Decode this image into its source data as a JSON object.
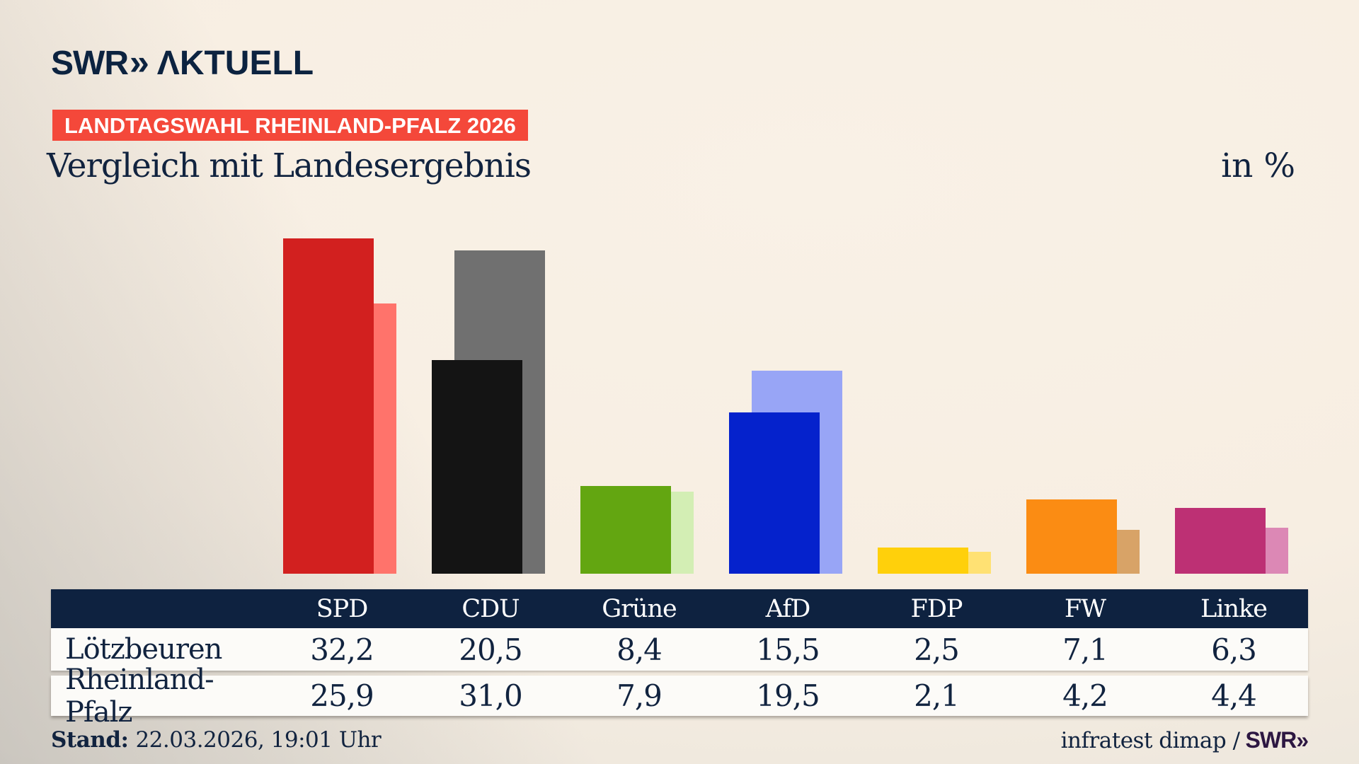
{
  "header": {
    "logo_swr": "SWR",
    "logo_chevron": "»",
    "logo_aktuell": "ΛKTUELL",
    "badge": "LANDTAGSWAHL RHEINLAND-PFALZ 2026",
    "title": "Vergleich mit Landesergebnis",
    "unit_label": "in %"
  },
  "chart_data": {
    "type": "bar",
    "categories": [
      "SPD",
      "CDU",
      "Grüne",
      "AfD",
      "FDP",
      "FW",
      "Linke"
    ],
    "series": [
      {
        "name": "Lötzbeuren",
        "role": "main",
        "values": [
          32.2,
          20.5,
          8.4,
          15.5,
          2.5,
          7.1,
          6.3
        ],
        "labels": [
          "32,2",
          "20,5",
          "8,4",
          "15,5",
          "2,5",
          "7,1",
          "6,3"
        ],
        "colors": [
          "#d2201f",
          "#141414",
          "#63a611",
          "#0522cc",
          "#ffd00b",
          "#fb8c13",
          "#bd3074"
        ]
      },
      {
        "name": "Rheinland-Pfalz",
        "role": "compare",
        "values": [
          25.9,
          31.0,
          7.9,
          19.5,
          2.1,
          4.2,
          4.4
        ],
        "labels": [
          "25,9",
          "31,0",
          "7,9",
          "19,5",
          "2,1",
          "4,2",
          "4,4"
        ],
        "colors": [
          "#ff736b",
          "#707070",
          "#d3eeb4",
          "#98a5f6",
          "#ffe173",
          "#d8a367",
          "#dc88b5"
        ]
      }
    ],
    "title": "Vergleich mit Landesergebnis",
    "unit": "in %",
    "ylim": [
      0,
      34
    ],
    "grid": false,
    "axis_labels": "none",
    "legend_position": "table-row-headers"
  },
  "footer": {
    "stand_label": "Stand:",
    "stand_value": "22.03.2026, 19:01 Uhr",
    "source_text": "infratest dimap /",
    "source_logo": "SWR»"
  },
  "colors": {
    "brand_navy": "#0c2340",
    "text_navy": "#11233f",
    "badge_red": "#f4483a",
    "table_header_bg": "#0e2240",
    "table_row_bg": "#fcfbf8",
    "footer_logo_purple": "#2d1742",
    "background_cream": "#f7eee2",
    "background_gray": "#d9d5cd"
  }
}
